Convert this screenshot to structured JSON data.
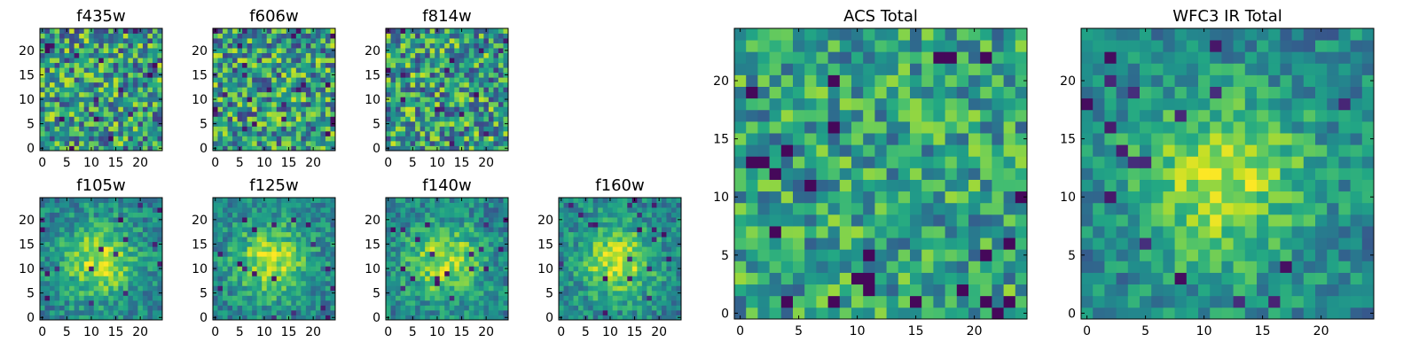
{
  "chart_data": [
    {
      "id": "f435w",
      "type": "heatmap",
      "title": "f435w",
      "colormap": "viridis",
      "grid_size": [
        25,
        25
      ],
      "xticks": [
        "0",
        "5",
        "10",
        "15",
        "20"
      ],
      "yticks": [
        "0",
        "5",
        "10",
        "15",
        "20"
      ],
      "pattern": "noise"
    },
    {
      "id": "f606w",
      "type": "heatmap",
      "title": "f606w",
      "colormap": "viridis",
      "grid_size": [
        25,
        25
      ],
      "xticks": [
        "0",
        "5",
        "10",
        "15",
        "20"
      ],
      "yticks": [
        "0",
        "5",
        "10",
        "15",
        "20"
      ],
      "pattern": "noise"
    },
    {
      "id": "f814w",
      "type": "heatmap",
      "title": "f814w",
      "colormap": "viridis",
      "grid_size": [
        25,
        25
      ],
      "xticks": [
        "0",
        "5",
        "10",
        "15",
        "20"
      ],
      "yticks": [
        "0",
        "5",
        "10",
        "15",
        "20"
      ],
      "pattern": "noise"
    },
    {
      "id": "f105w",
      "type": "heatmap",
      "title": "f105w",
      "colormap": "viridis",
      "grid_size": [
        25,
        25
      ],
      "xticks": [
        "0",
        "5",
        "10",
        "15",
        "20"
      ],
      "yticks": [
        "0",
        "5",
        "10",
        "15",
        "20"
      ],
      "pattern": "central-blob"
    },
    {
      "id": "f125w",
      "type": "heatmap",
      "title": "f125w",
      "colormap": "viridis",
      "grid_size": [
        25,
        25
      ],
      "xticks": [
        "0",
        "5",
        "10",
        "15",
        "20"
      ],
      "yticks": [
        "0",
        "5",
        "10",
        "15",
        "20"
      ],
      "pattern": "central-blob"
    },
    {
      "id": "f140w",
      "type": "heatmap",
      "title": "f140w",
      "colormap": "viridis",
      "grid_size": [
        25,
        25
      ],
      "xticks": [
        "0",
        "5",
        "10",
        "15",
        "20"
      ],
      "yticks": [
        "0",
        "5",
        "10",
        "15",
        "20"
      ],
      "pattern": "central-blob"
    },
    {
      "id": "f160w",
      "type": "heatmap",
      "title": "f160w",
      "colormap": "viridis",
      "grid_size": [
        25,
        25
      ],
      "xticks": [
        "0",
        "5",
        "10",
        "15",
        "20"
      ],
      "yticks": [
        "0",
        "5",
        "10",
        "15",
        "20"
      ],
      "pattern": "central-blob"
    },
    {
      "id": "acs-total",
      "type": "heatmap",
      "title": "ACS Total",
      "colormap": "viridis",
      "grid_size": [
        25,
        25
      ],
      "xticks": [
        "0",
        "5",
        "10",
        "15",
        "20"
      ],
      "yticks": [
        "0",
        "5",
        "10",
        "15",
        "20"
      ],
      "pattern": "noise-bright"
    },
    {
      "id": "wfc3-ir-total",
      "type": "heatmap",
      "title": "WFC3 IR Total",
      "colormap": "viridis",
      "grid_size": [
        25,
        25
      ],
      "xticks": [
        "0",
        "5",
        "10",
        "15",
        "20"
      ],
      "yticks": [
        "0",
        "5",
        "10",
        "15",
        "20"
      ],
      "pattern": "central-blob"
    }
  ]
}
